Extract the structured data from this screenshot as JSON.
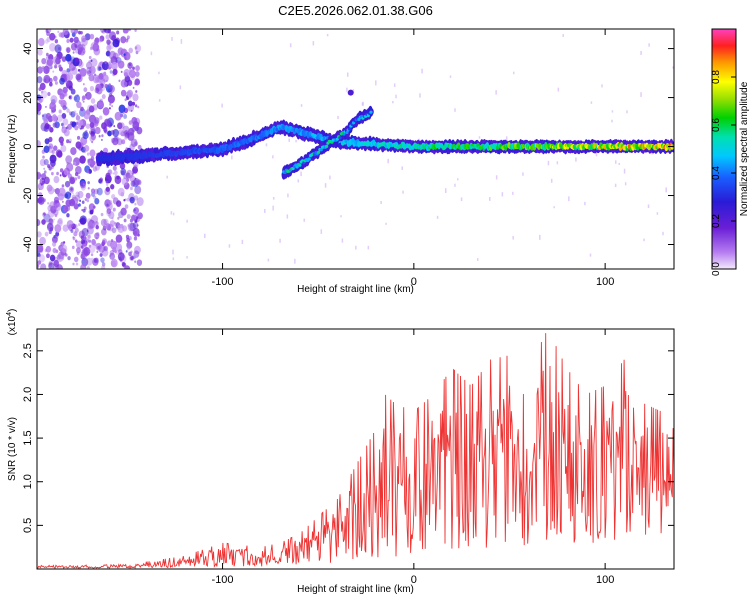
{
  "figure_title": "C2E5.2026.062.01.38.G06",
  "chart_data": [
    {
      "type": "heatmap",
      "name": "spectrogram",
      "title": "C2E5.2026.062.01.38.G06",
      "xlabel": "Height of straight line (km)",
      "ylabel": "Frequency (Hz)",
      "xlim": [
        -197,
        136
      ],
      "ylim": [
        -50,
        48
      ],
      "xticks": [
        -100,
        0,
        100
      ],
      "yticks": [
        -40,
        -20,
        0,
        20,
        40
      ],
      "xtick_labels": [
        "-100",
        "0",
        "100"
      ],
      "ytick_labels": [
        "-40",
        "-20",
        "0",
        "20",
        "40"
      ],
      "colorbar": {
        "label": "Normalized spectral amplitude",
        "range": [
          0,
          1
        ],
        "ticks": [
          0.0,
          0.2,
          0.4,
          0.6,
          0.8
        ],
        "tick_labels": [
          "0.0",
          "0.2",
          "0.4",
          "0.6",
          "0.8"
        ]
      },
      "features": [
        {
          "name": "noise scatter",
          "x_range": [
            -197,
            -143
          ],
          "freq_range": [
            -50,
            48
          ],
          "amplitude": 0.08
        },
        {
          "name": "main band",
          "points": [
            [
              -165,
              -5
            ],
            [
              -130,
              -3
            ],
            [
              -100,
              -1
            ],
            [
              -85,
              3
            ],
            [
              -70,
              8
            ],
            [
              -40,
              2
            ],
            [
              -20,
              1
            ],
            [
              0,
              0
            ],
            [
              50,
              0
            ],
            [
              100,
              0
            ],
            [
              136,
              0
            ]
          ],
          "amplitude_start": 0.3,
          "amplitude_end": 0.9
        },
        {
          "name": "lower branch",
          "points": [
            [
              -68,
              -11
            ],
            [
              -55,
              -5
            ],
            [
              -45,
              1
            ],
            [
              -35,
              6
            ]
          ],
          "amplitude": 0.35
        },
        {
          "name": "upper branches",
          "points": [
            [
              -35,
              6
            ],
            [
              -30,
              11
            ],
            [
              -22,
              14
            ]
          ],
          "amplitude": 0.3
        },
        {
          "name": "isolated spot",
          "points": [
            [
              -33,
              22
            ]
          ],
          "amplitude": 0.2
        }
      ]
    },
    {
      "type": "line",
      "name": "snr",
      "xlabel": "Height of straight line (km)",
      "ylabel": "SNR (10 * v/v)",
      "y_multiplier": "(x10^4)",
      "xlim": [
        -197,
        136
      ],
      "ylim": [
        0,
        2.75
      ],
      "xticks": [
        -100,
        0,
        100
      ],
      "yticks": [
        0.5,
        1.0,
        1.5,
        2.0,
        2.5
      ],
      "xtick_labels": [
        "-100",
        "0",
        "100"
      ],
      "ytick_labels": [
        "0.5",
        "1.0",
        "1.5",
        "2.0",
        "2.5"
      ],
      "envelope": {
        "x": [
          -197,
          -150,
          -120,
          -100,
          -80,
          -70,
          -60,
          -50,
          -40,
          -30,
          -20,
          -15,
          -10,
          0,
          10,
          20,
          30,
          40,
          50,
          60,
          70,
          80,
          90,
          100,
          110,
          120,
          130,
          136
        ],
        "y_max": [
          0.04,
          0.05,
          0.15,
          0.3,
          0.25,
          0.3,
          0.4,
          0.6,
          0.8,
          1.2,
          1.6,
          2.0,
          1.9,
          1.8,
          2.0,
          2.3,
          2.1,
          2.4,
          2.45,
          2.3,
          2.75,
          2.3,
          2.0,
          2.1,
          2.4,
          1.9,
          1.8,
          1.6
        ],
        "y_min": [
          0.01,
          0.01,
          0.02,
          0.03,
          0.02,
          0.03,
          0.05,
          0.05,
          0.05,
          0.05,
          0.05,
          0.1,
          0.1,
          0.1,
          0.1,
          0.2,
          0.2,
          0.25,
          0.2,
          0.2,
          0.3,
          0.3,
          0.3,
          0.3,
          0.3,
          0.3,
          0.4,
          0.8
        ]
      },
      "color": "#ee3333"
    }
  ]
}
